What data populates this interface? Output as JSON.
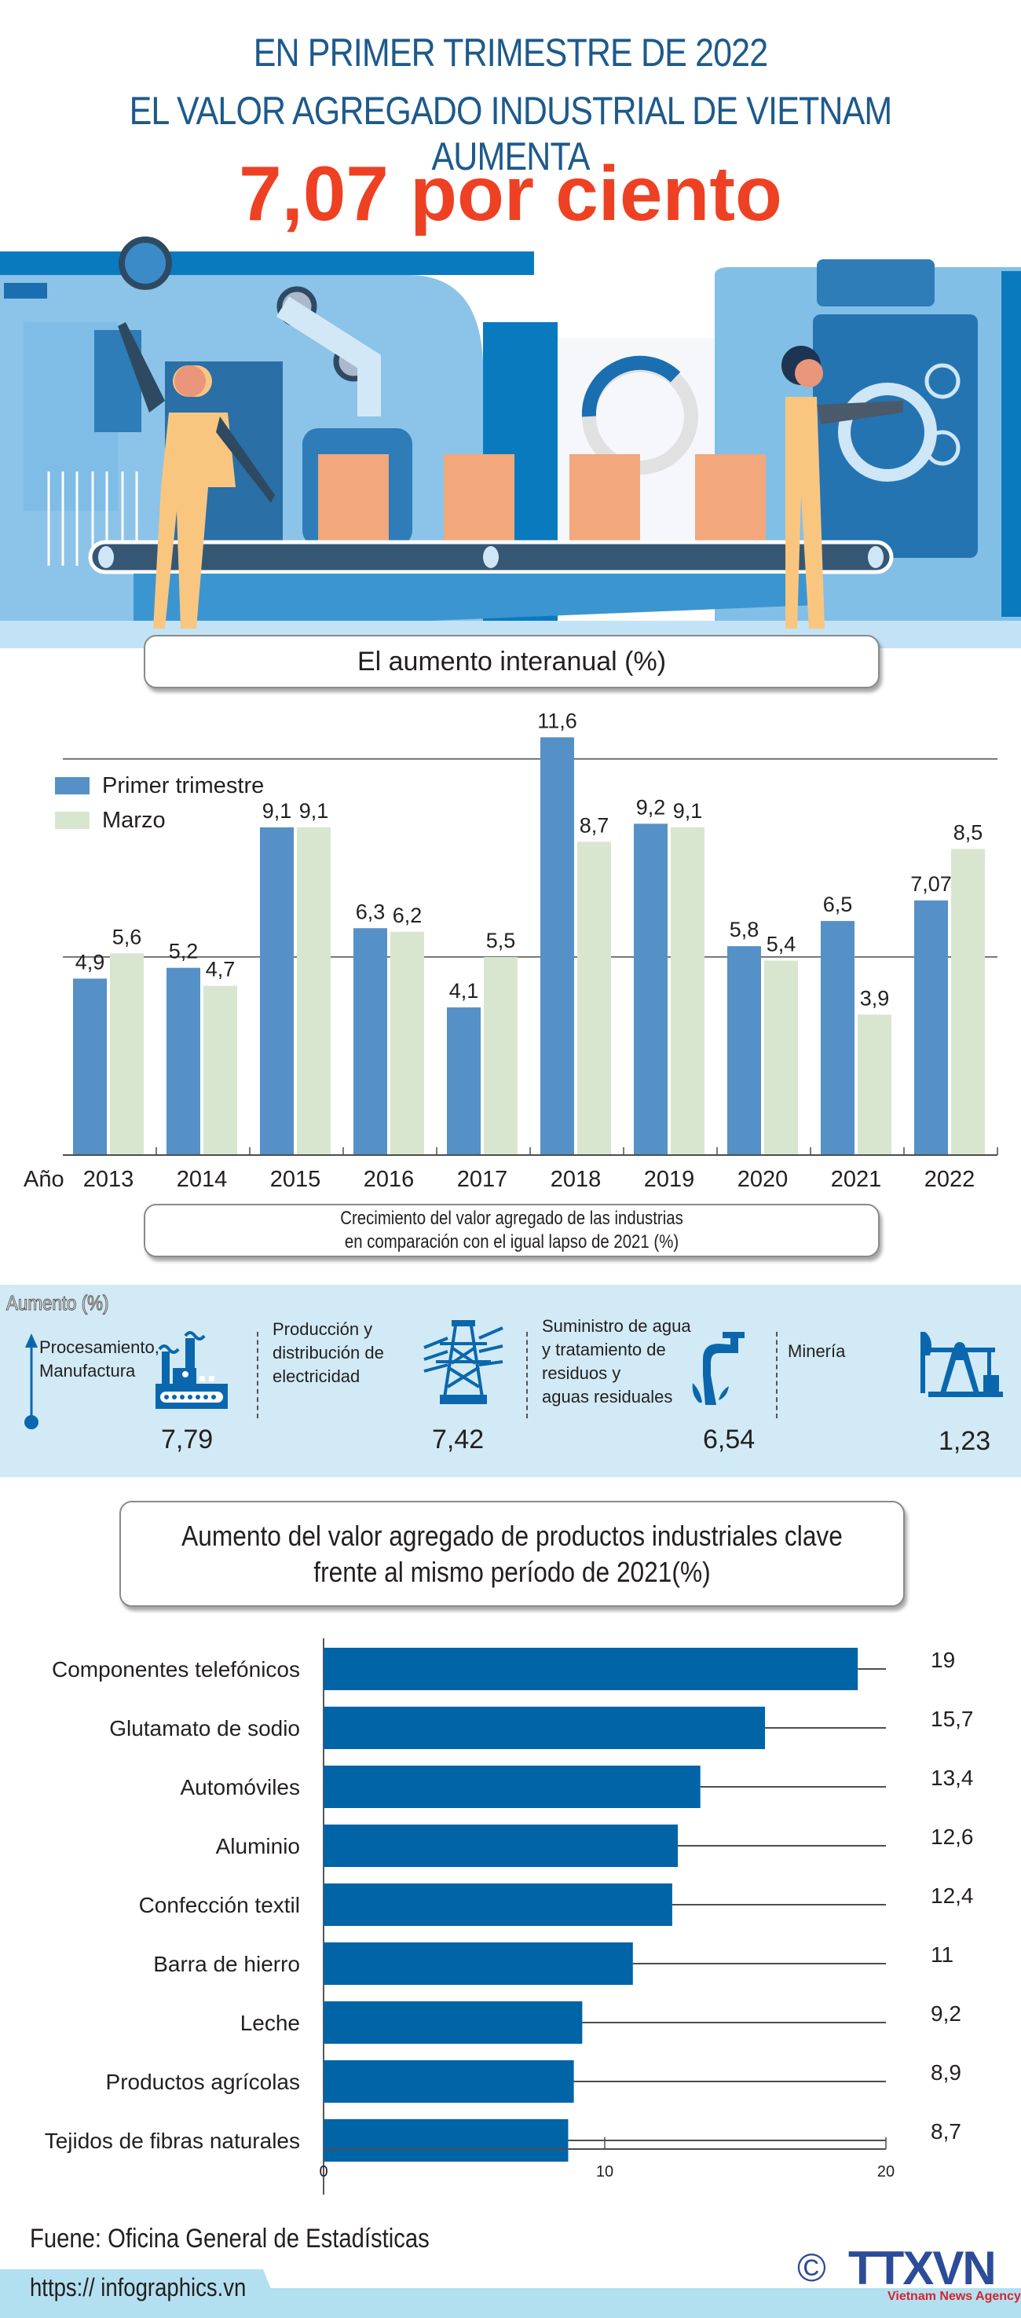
{
  "header": {
    "line1": "EN PRIMER TRIMESTRE DE 2022",
    "line2": "EL VALOR AGREGADO INDUSTRIAL DE VIETNAM AUMENTA",
    "headline": "7,07 por ciento"
  },
  "colors": {
    "title_blue": "#1d5a8c",
    "headline_red": "#ee4123",
    "series_q1": "#5591c6",
    "series_march": "#d8e6cf",
    "hbar_blue": "#0064a6",
    "industries_bg": "#d1eaf5",
    "icon_blue": "#0b67ad"
  },
  "chart_data": [
    {
      "type": "bar",
      "title": "El aumento interanual (%)",
      "xlabel": "Año",
      "ylabel": "",
      "categories": [
        "2013",
        "2014",
        "2015",
        "2016",
        "2017",
        "2018",
        "2019",
        "2020",
        "2021",
        "2022"
      ],
      "series": [
        {
          "name": "Primer trimestre",
          "values": [
            4.9,
            5.2,
            9.1,
            6.3,
            4.1,
            11.6,
            9.2,
            5.8,
            6.5,
            7.07
          ],
          "labels": [
            "4,9",
            "5,2",
            "9,1",
            "6,3",
            "4,1",
            "11,6",
            "9,2",
            "5,8",
            "6,5",
            "7,07"
          ]
        },
        {
          "name": "Marzo",
          "values": [
            5.6,
            4.7,
            9.1,
            6.2,
            5.5,
            8.7,
            9.1,
            5.4,
            3.9,
            8.5
          ],
          "labels": [
            "5,6",
            "4,7",
            "9,1",
            "6,2",
            "5,5",
            "8,7",
            "9,1",
            "5,4",
            "3,9",
            "8,5"
          ]
        }
      ],
      "ylim": [
        0,
        12
      ],
      "gridlines": [
        5.5,
        11.0
      ],
      "legend": "top-left"
    },
    {
      "type": "table",
      "title": "Crecimiento del valor agregado de las industrias en comparación con el igual lapso de 2021 (%)",
      "axis_label": "Aumento (%)",
      "categories": [
        "Procesamiento, Manufactura",
        "Producción y distribución de electricidad",
        "Suministro de agua y tratamiento de residuos y aguas residuales",
        "Minería"
      ],
      "values": [
        7.79,
        7.42,
        6.54,
        1.23
      ],
      "labels": [
        "7,79",
        "7,42",
        "6,54",
        "1,23"
      ]
    },
    {
      "type": "bar",
      "orientation": "horizontal",
      "title": "Aumento del valor agregado de productos industriales clave frente al mismo período de 2021(%)",
      "categories": [
        "Componentes telefónicos",
        "Glutamato de sodio",
        "Automóviles",
        "Aluminio",
        "Confección textil",
        "Barra de hierro",
        "Leche",
        "Productos agrícolas",
        "Tejidos de fibras naturales"
      ],
      "values": [
        19,
        15.7,
        13.4,
        12.6,
        12.4,
        11,
        9.2,
        8.9,
        8.7
      ],
      "labels": [
        "19",
        "15,7",
        "13,4",
        "12,6",
        "12,4",
        "11",
        "9,2",
        "8,9",
        "8,7"
      ],
      "xlim": [
        0,
        20
      ],
      "xticks": [
        "0",
        "10",
        "20"
      ]
    }
  ],
  "chart1": {
    "title": "El aumento interanual (%)",
    "axis_prefix": "Año",
    "legend": [
      "Primer trimestre",
      "Marzo"
    ]
  },
  "industries": {
    "title_line1": "Crecimiento del valor agregado de las industrias",
    "title_line2": "en comparación con el igual lapso de 2021 (%)",
    "axis_label": "Aumento (%)",
    "items": [
      {
        "label_lines": [
          "Procesamiento,",
          "Manufactura"
        ],
        "value": "7,79",
        "icon": "factory-icon"
      },
      {
        "label_lines": [
          "Producción y",
          "distribución de",
          "electricidad"
        ],
        "value": "7,42",
        "icon": "power-tower-icon"
      },
      {
        "label_lines": [
          "Suministro de agua",
          "y tratamiento de",
          "residuos y",
          "aguas residuales"
        ],
        "value": "6,54",
        "icon": "water-tap-icon"
      },
      {
        "label_lines": [
          "Minería"
        ],
        "value": "1,23",
        "icon": "oil-pump-icon"
      }
    ]
  },
  "chart3": {
    "title_line1": "Aumento del valor agregado de productos industriales clave",
    "title_line2": "frente al mismo período de 2021(%)"
  },
  "footer": {
    "source": "Fuene: Oficina General de Estadísticas",
    "url": "https:// infographics.vn",
    "copyright": "©",
    "logo_text": "TTXVN",
    "logo_sub": "Vietnam News Agency"
  }
}
